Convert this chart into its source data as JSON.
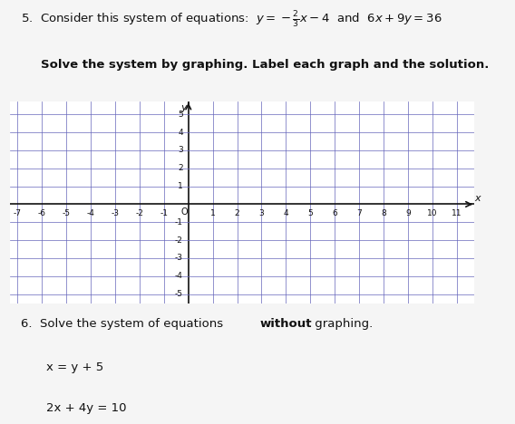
{
  "bg_color": "#f5f5f5",
  "grid_color": "#6666bb",
  "axis_color": "#111111",
  "text_color": "#111111",
  "grid_xmin": -7,
  "grid_xmax": 11,
  "grid_ymin": -5,
  "grid_ymax": 5,
  "xtick_labels": [
    -7,
    -6,
    -5,
    -4,
    -3,
    -2,
    -1,
    1,
    2,
    3,
    4,
    5,
    6,
    7,
    8,
    9,
    10,
    11
  ],
  "ytick_labels": [
    5,
    4,
    3,
    2,
    1,
    -1,
    -2,
    -3,
    -4,
    -5
  ],
  "title_line1": "5.  Consider this system of equations:  $y = -\\frac{2}{3}x - 4$  and  $6x + 9y = 36$",
  "instruction": "Solve the system by graphing. Label each graph and the solution.",
  "s6_pre": "6.  Solve the system of equations ",
  "s6_bold": "without",
  "s6_post": " graphing.",
  "eq3": "x = y + 5",
  "eq4": "2x + 4y = 10"
}
